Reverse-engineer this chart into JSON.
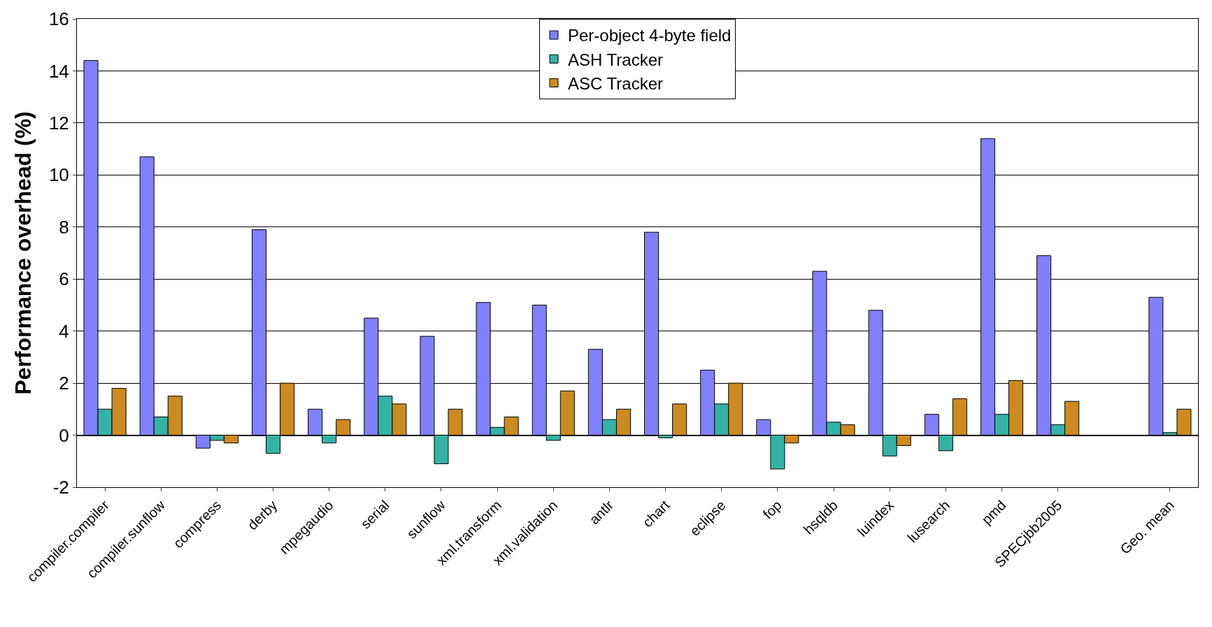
{
  "chart_data": {
    "type": "bar",
    "ylabel": "Performance overhead (%)",
    "categories": [
      "compiler.compiler",
      "compiler.sunflow",
      "compress",
      "derby",
      "mpegaudio",
      "serial",
      "sunflow",
      "xml.transform",
      "xml.validation",
      "antlr",
      "chart",
      "eclipse",
      "fop",
      "hsqldb",
      "luindex",
      "lusearch",
      "pmd",
      "SPECjbb2005",
      null,
      "Geo. mean"
    ],
    "series": [
      {
        "name": "Per-object 4-byte field",
        "color": "#8080ff",
        "values": [
          14.4,
          10.7,
          -0.5,
          7.9,
          1.0,
          4.5,
          3.8,
          5.1,
          5.0,
          3.3,
          7.8,
          2.5,
          0.6,
          6.3,
          4.8,
          0.8,
          11.4,
          6.9,
          null,
          5.3
        ]
      },
      {
        "name": "ASH Tracker",
        "color": "#33b3a6",
        "values": [
          1.0,
          0.7,
          -0.2,
          -0.7,
          -0.3,
          1.5,
          -1.1,
          0.3,
          -0.2,
          0.6,
          -0.1,
          1.2,
          -1.3,
          0.5,
          -0.8,
          -0.6,
          0.8,
          0.4,
          null,
          0.1
        ]
      },
      {
        "name": "ASC Tracker",
        "color": "#cc8a1f",
        "values": [
          1.8,
          1.5,
          -0.3,
          2.0,
          0.6,
          1.2,
          1.0,
          0.7,
          1.7,
          1.0,
          1.2,
          2.0,
          -0.3,
          0.4,
          -0.4,
          1.4,
          2.1,
          1.3,
          null,
          1.0
        ]
      }
    ],
    "ylim": [
      -2,
      16
    ],
    "yticks": [
      -2,
      0,
      2,
      4,
      6,
      8,
      10,
      12,
      14,
      16
    ],
    "grid": "y",
    "legend": "top"
  }
}
